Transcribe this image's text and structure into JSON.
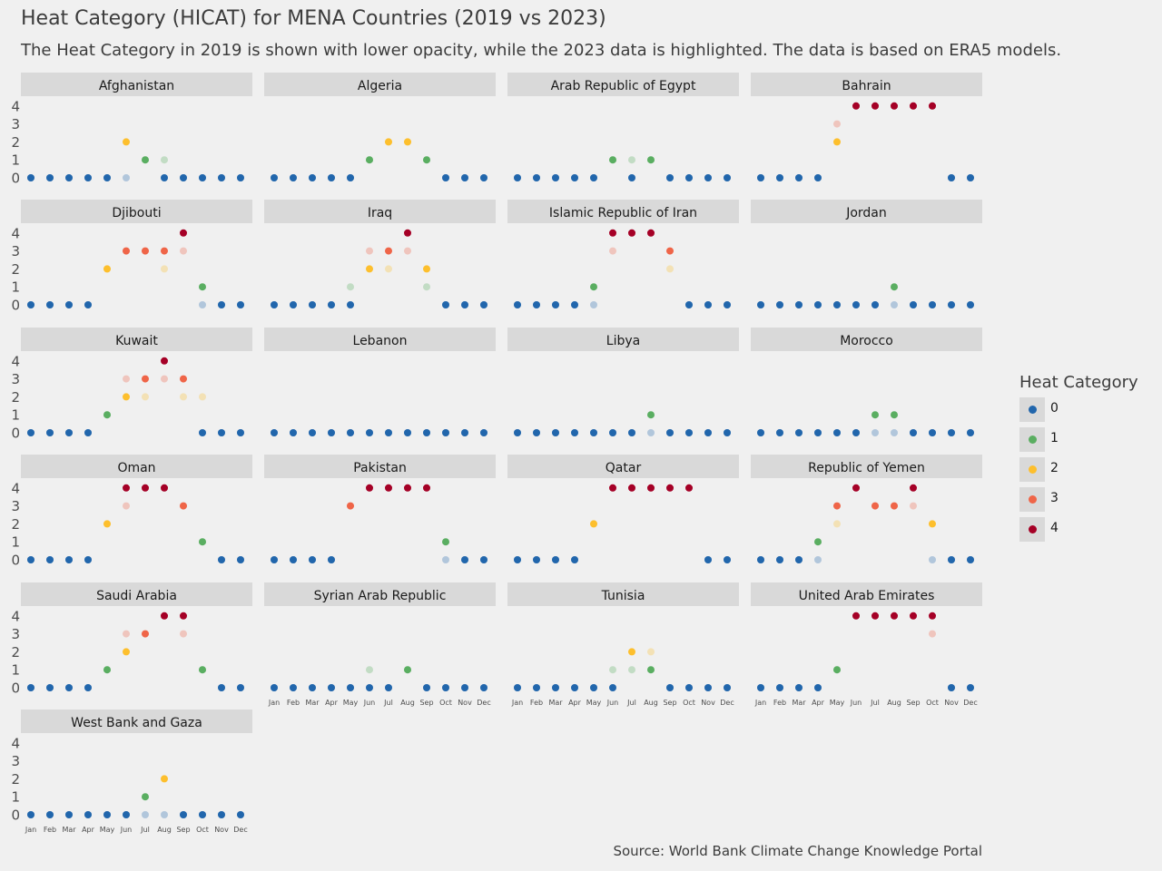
{
  "header": {
    "title": "Heat Category (HICAT) for MENA Countries (2019 vs 2023)",
    "subtitle": "The Heat Category in 2019 is shown with lower opacity, while the 2023 data is highlighted. The data is based on ERA5 models."
  },
  "source": "Source: World Bank Climate Change Knowledge Portal",
  "legend": {
    "title": "Heat Category",
    "items": [
      {
        "label": "0",
        "color": "#2166ac"
      },
      {
        "label": "1",
        "color": "#5aae61"
      },
      {
        "label": "2",
        "color": "#fdbf2d"
      },
      {
        "label": "3",
        "color": "#ef6548"
      },
      {
        "label": "4",
        "color": "#a50026"
      }
    ]
  },
  "chart_data": {
    "type": "scatter",
    "facet": "country",
    "months": [
      "Jan",
      "Feb",
      "Mar",
      "Apr",
      "May",
      "Jun",
      "Jul",
      "Aug",
      "Sep",
      "Oct",
      "Nov",
      "Dec"
    ],
    "ylim": [
      0,
      4
    ],
    "yticks": [
      "0",
      "1",
      "2",
      "3",
      "4"
    ],
    "series": [
      {
        "name": "2019",
        "opacity": "low"
      },
      {
        "name": "2023",
        "opacity": "full"
      }
    ],
    "category_colors": [
      "#2166ac",
      "#5aae61",
      "#fdbf2d",
      "#ef6548",
      "#a50026"
    ],
    "panels": [
      {
        "country": "Afghanistan",
        "v2019": [
          0,
          0,
          0,
          0,
          0,
          0,
          1,
          1,
          0,
          0,
          0,
          0
        ],
        "v2023": [
          0,
          0,
          0,
          0,
          0,
          2,
          1,
          0,
          0,
          0,
          0,
          0
        ]
      },
      {
        "country": "Algeria",
        "v2019": [
          0,
          0,
          0,
          0,
          0,
          1,
          2,
          2,
          1,
          0,
          0,
          0
        ],
        "v2023": [
          0,
          0,
          0,
          0,
          0,
          1,
          2,
          2,
          1,
          0,
          0,
          0
        ]
      },
      {
        "country": "Arab Republic of Egypt",
        "v2019": [
          0,
          0,
          0,
          0,
          0,
          1,
          1,
          1,
          0,
          0,
          0,
          0
        ],
        "v2023": [
          0,
          0,
          0,
          0,
          0,
          1,
          0,
          1,
          0,
          0,
          0,
          0
        ]
      },
      {
        "country": "Bahrain",
        "v2019": [
          0,
          0,
          0,
          0,
          3,
          4,
          4,
          4,
          4,
          4,
          0,
          0
        ],
        "v2023": [
          0,
          0,
          0,
          0,
          2,
          4,
          4,
          4,
          4,
          4,
          0,
          0
        ]
      },
      {
        "country": "Djibouti",
        "v2019": [
          0,
          0,
          0,
          0,
          2,
          3,
          3,
          2,
          3,
          0,
          0,
          0
        ],
        "v2023": [
          0,
          0,
          0,
          0,
          2,
          3,
          3,
          3,
          4,
          1,
          0,
          0
        ]
      },
      {
        "country": "Iraq",
        "v2019": [
          0,
          0,
          0,
          0,
          1,
          3,
          2,
          3,
          1,
          0,
          0,
          0
        ],
        "v2023": [
          0,
          0,
          0,
          0,
          0,
          2,
          3,
          4,
          2,
          0,
          0,
          0
        ]
      },
      {
        "country": "Islamic Republic of Iran",
        "v2019": [
          0,
          0,
          0,
          0,
          0,
          3,
          4,
          4,
          2,
          0,
          0,
          0
        ],
        "v2023": [
          0,
          0,
          0,
          0,
          1,
          4,
          4,
          4,
          3,
          0,
          0,
          0
        ]
      },
      {
        "country": "Jordan",
        "v2019": [
          0,
          0,
          0,
          0,
          0,
          0,
          0,
          0,
          0,
          0,
          0,
          0
        ],
        "v2023": [
          0,
          0,
          0,
          0,
          0,
          0,
          0,
          1,
          0,
          0,
          0,
          0
        ]
      },
      {
        "country": "Kuwait",
        "v2019": [
          0,
          0,
          0,
          0,
          1,
          3,
          2,
          3,
          2,
          2,
          0,
          0
        ],
        "v2023": [
          0,
          0,
          0,
          0,
          1,
          2,
          3,
          4,
          3,
          0,
          0,
          0
        ]
      },
      {
        "country": "Lebanon",
        "v2019": [
          0,
          0,
          0,
          0,
          0,
          0,
          0,
          0,
          0,
          0,
          0,
          0
        ],
        "v2023": [
          0,
          0,
          0,
          0,
          0,
          0,
          0,
          0,
          0,
          0,
          0,
          0
        ]
      },
      {
        "country": "Libya",
        "v2019": [
          0,
          0,
          0,
          0,
          0,
          0,
          0,
          0,
          0,
          0,
          0,
          0
        ],
        "v2023": [
          0,
          0,
          0,
          0,
          0,
          0,
          0,
          1,
          0,
          0,
          0,
          0
        ]
      },
      {
        "country": "Morocco",
        "v2019": [
          0,
          0,
          0,
          0,
          0,
          0,
          0,
          0,
          0,
          0,
          0,
          0
        ],
        "v2023": [
          0,
          0,
          0,
          0,
          0,
          0,
          1,
          1,
          0,
          0,
          0,
          0
        ]
      },
      {
        "country": "Oman",
        "v2019": [
          0,
          0,
          0,
          0,
          2,
          3,
          4,
          4,
          3,
          1,
          0,
          0
        ],
        "v2023": [
          0,
          0,
          0,
          0,
          2,
          4,
          4,
          4,
          3,
          1,
          0,
          0
        ]
      },
      {
        "country": "Pakistan",
        "v2019": [
          0,
          0,
          0,
          0,
          3,
          4,
          4,
          4,
          4,
          0,
          0,
          0
        ],
        "v2023": [
          0,
          0,
          0,
          0,
          3,
          4,
          4,
          4,
          4,
          1,
          0,
          0
        ]
      },
      {
        "country": "Qatar",
        "v2019": [
          0,
          0,
          0,
          0,
          2,
          4,
          4,
          4,
          4,
          4,
          0,
          0
        ],
        "v2023": [
          0,
          0,
          0,
          0,
          2,
          4,
          4,
          4,
          4,
          4,
          0,
          0
        ]
      },
      {
        "country": "Republic of Yemen",
        "v2019": [
          0,
          0,
          0,
          0,
          2,
          4,
          3,
          3,
          3,
          0,
          0,
          0
        ],
        "v2023": [
          0,
          0,
          0,
          1,
          3,
          4,
          3,
          3,
          4,
          2,
          0,
          0
        ]
      },
      {
        "country": "Saudi Arabia",
        "v2019": [
          0,
          0,
          0,
          0,
          1,
          3,
          3,
          4,
          3,
          1,
          0,
          0
        ],
        "v2023": [
          0,
          0,
          0,
          0,
          1,
          2,
          3,
          4,
          4,
          1,
          0,
          0
        ]
      },
      {
        "country": "Syrian Arab Republic",
        "v2019": [
          0,
          0,
          0,
          0,
          0,
          1,
          0,
          1,
          0,
          0,
          0,
          0
        ],
        "v2023": [
          0,
          0,
          0,
          0,
          0,
          0,
          0,
          1,
          0,
          0,
          0,
          0
        ]
      },
      {
        "country": "Tunisia",
        "v2019": [
          0,
          0,
          0,
          0,
          0,
          1,
          1,
          2,
          0,
          0,
          0,
          0
        ],
        "v2023": [
          0,
          0,
          0,
          0,
          0,
          0,
          2,
          1,
          0,
          0,
          0,
          0
        ]
      },
      {
        "country": "United Arab Emirates",
        "v2019": [
          0,
          0,
          0,
          0,
          1,
          4,
          4,
          4,
          4,
          3,
          0,
          0
        ],
        "v2023": [
          0,
          0,
          0,
          0,
          1,
          4,
          4,
          4,
          4,
          4,
          0,
          0
        ]
      },
      {
        "country": "West Bank and Gaza",
        "v2019": [
          0,
          0,
          0,
          0,
          0,
          0,
          0,
          0,
          0,
          0,
          0,
          0
        ],
        "v2023": [
          0,
          0,
          0,
          0,
          0,
          0,
          1,
          2,
          0,
          0,
          0,
          0
        ]
      }
    ]
  }
}
